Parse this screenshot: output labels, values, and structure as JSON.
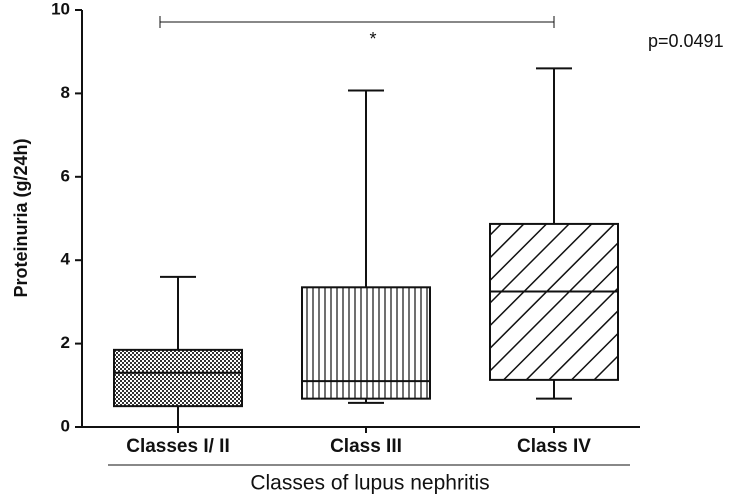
{
  "chart_data": {
    "type": "box",
    "y_label": "Proteinuria (g/24h)",
    "x_label": "Classes of lupus nephritis",
    "categories": [
      "Classes I/ II",
      "Class III",
      "Class IV"
    ],
    "whisker_low": [
      0,
      0.58,
      0.68
    ],
    "q1": [
      0.5,
      0.68,
      1.13
    ],
    "median": [
      1.3,
      1.1,
      3.25
    ],
    "q3": [
      1.85,
      3.35,
      4.87
    ],
    "whisker_high": [
      3.6,
      8.07,
      8.6
    ],
    "patterns": [
      "crosshatch",
      "vertical",
      "diagonal"
    ],
    "ylim": [
      0,
      10
    ],
    "yticks": [
      0,
      2,
      4,
      6,
      8,
      10
    ],
    "significance_label": "*",
    "p_value": "p=0.0491"
  }
}
